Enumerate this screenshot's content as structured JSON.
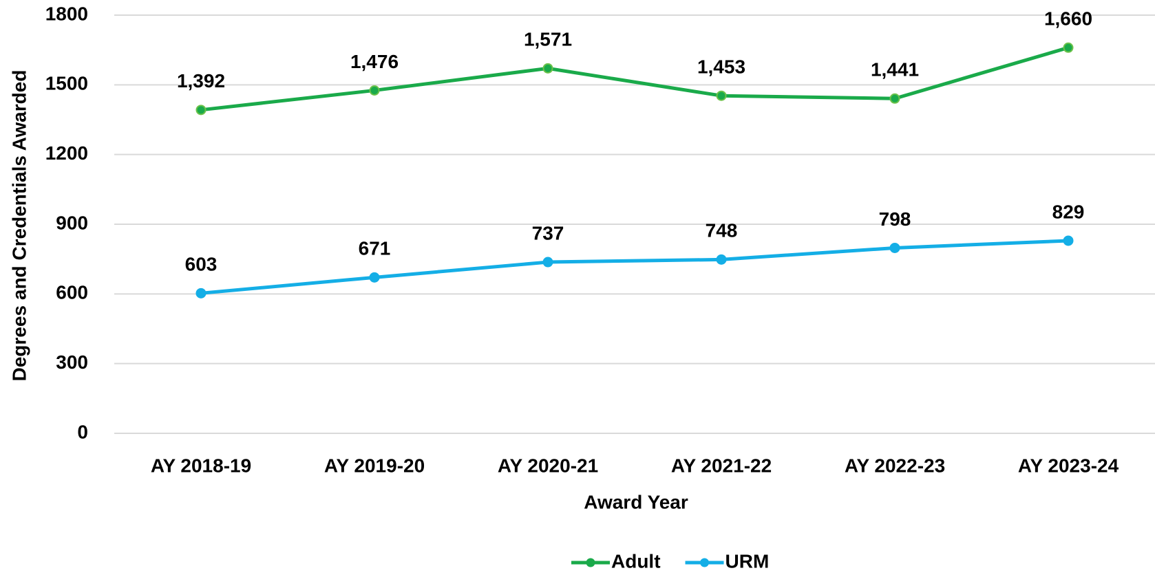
{
  "chart_data": {
    "type": "line",
    "x_label": "Award Year",
    "y_label": "Degrees and Credentials Awarded",
    "categories": [
      "AY 2018-19",
      "AY 2019-20",
      "AY 2020-21",
      "AY 2021-22",
      "AY 2022-23",
      "AY 2023-24"
    ],
    "series": [
      {
        "name": "Adult",
        "color": "#1aaa4a",
        "values": [
          1392,
          1476,
          1571,
          1453,
          1441,
          1660
        ],
        "value_labels": [
          "1,392",
          "1,476",
          "1,571",
          "1,453",
          "1,441",
          "1,660"
        ]
      },
      {
        "name": "URM",
        "color": "#14aee6",
        "values": [
          603,
          671,
          737,
          748,
          798,
          829
        ]
      }
    ],
    "ylim": [
      0,
      1800
    ],
    "yticks": [
      0,
      300,
      600,
      900,
      1200,
      1500,
      1800
    ],
    "grid": true,
    "legend": "bottom"
  }
}
